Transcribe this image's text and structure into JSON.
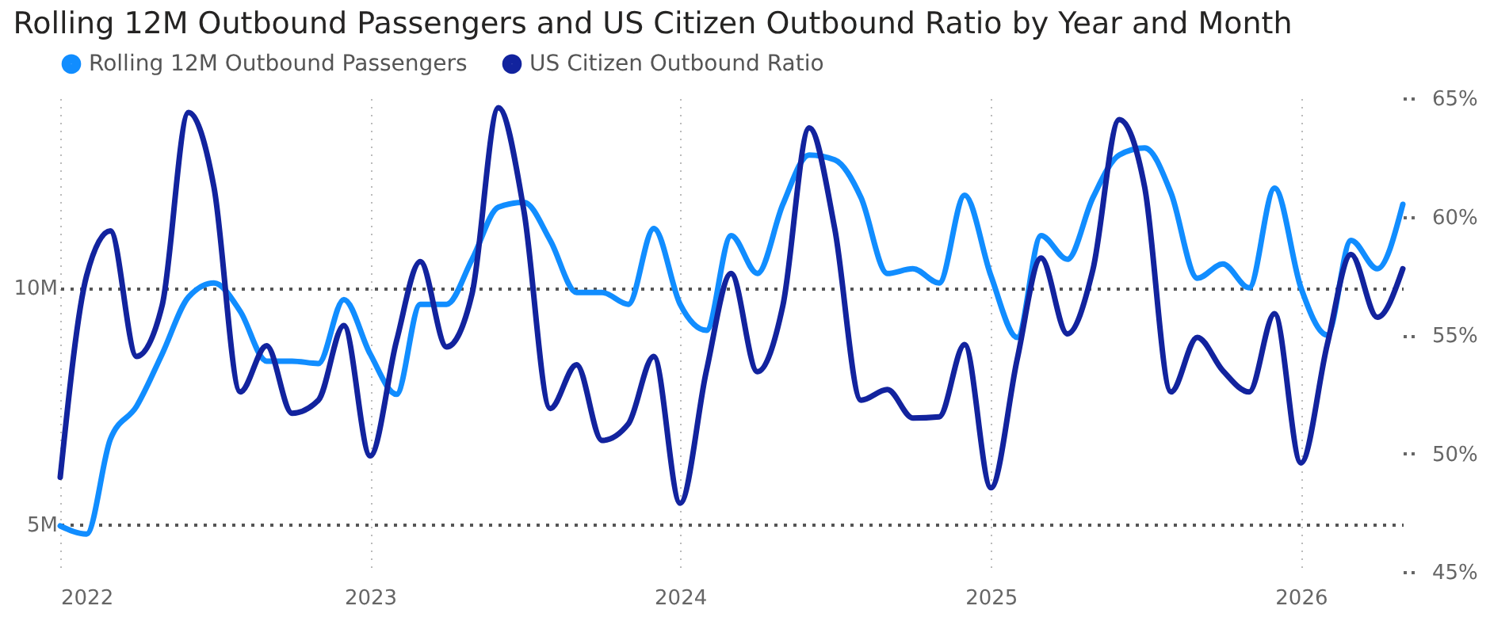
{
  "chart_data": {
    "type": "line",
    "title": "Rolling 12M Outbound Passengers and US Citizen Outbound Ratio by Year and Month",
    "x": [
      "2022-01",
      "2022-02",
      "2022-03",
      "2022-04",
      "2022-05",
      "2022-06",
      "2022-07",
      "2022-08",
      "2022-09",
      "2022-10",
      "2022-11",
      "2022-12",
      "2023-01",
      "2023-02",
      "2023-03",
      "2023-04",
      "2023-05",
      "2023-06",
      "2023-07",
      "2023-08",
      "2023-09",
      "2023-10",
      "2023-11",
      "2023-12",
      "2024-01",
      "2024-02",
      "2024-03",
      "2024-04",
      "2024-05",
      "2024-06",
      "2024-07",
      "2024-08",
      "2024-09",
      "2024-10",
      "2024-11",
      "2024-12",
      "2025-01",
      "2025-02",
      "2025-03",
      "2025-04",
      "2025-05",
      "2025-06",
      "2025-07",
      "2025-08",
      "2025-09",
      "2025-10",
      "2025-11",
      "2025-12",
      "2026-01",
      "2026-02",
      "2026-03",
      "2026-04",
      "2026-05"
    ],
    "series": [
      {
        "name": "Rolling 12M Outbound Passengers",
        "color": "#118dff",
        "values": [
          4.97,
          4.8,
          6.8,
          7.5,
          8.6,
          9.8,
          10.1,
          9.5,
          8.45,
          8.45,
          8.4,
          9.75,
          8.6,
          7.75,
          9.65,
          9.65,
          10.6,
          11.7,
          11.8,
          11.0,
          9.9,
          9.9,
          9.65,
          11.25,
          9.65,
          9.1,
          11.1,
          10.3,
          11.76,
          12.8,
          12.7,
          11.9,
          10.3,
          10.4,
          10.1,
          11.95,
          10.25,
          8.95,
          11.1,
          10.6,
          11.9,
          12.8,
          12.95,
          12.0,
          10.2,
          10.5,
          10.0,
          12.1,
          10.0,
          9.0,
          11.0,
          10.4,
          11.76
        ]
      },
      {
        "name": "US Citizen Outbound Ratio",
        "color": "#12239e",
        "axis": "y2",
        "values": [
          49.0,
          57.5,
          59.4,
          54.1,
          56.25,
          64.4,
          61.25,
          52.6,
          54.55,
          51.7,
          52.25,
          55.4,
          49.9,
          54.75,
          58.1,
          54.5,
          56.75,
          64.6,
          60.25,
          51.9,
          53.75,
          50.55,
          51.25,
          54.1,
          47.9,
          53.5,
          57.6,
          53.45,
          56.25,
          63.75,
          59.5,
          52.25,
          52.7,
          51.5,
          51.55,
          54.6,
          48.55,
          54.0,
          58.25,
          55.05,
          57.75,
          64.1,
          61.25,
          52.6,
          54.9,
          53.5,
          52.6,
          55.9,
          49.6,
          54.6,
          58.4,
          55.75,
          57.8
        ]
      }
    ],
    "xlim": [
      "2022-01",
      "2026-05"
    ],
    "xticks": [
      "2022",
      "2023",
      "2024",
      "2025",
      "2026"
    ],
    "ylim": [
      4,
      14
    ],
    "yticks": [
      {
        "value": 5,
        "label": "5M"
      },
      {
        "value": 10,
        "label": "10M"
      }
    ],
    "y2lim": [
      45,
      65
    ],
    "y2ticks": [
      {
        "value": 45,
        "label": "45%"
      },
      {
        "value": 50,
        "label": "50%"
      },
      {
        "value": 55,
        "label": "55%"
      },
      {
        "value": 60,
        "label": "60%"
      },
      {
        "value": 65,
        "label": "65%"
      }
    ],
    "grid": true,
    "legend": "top left",
    "marker": "none",
    "line_style": "solid"
  }
}
